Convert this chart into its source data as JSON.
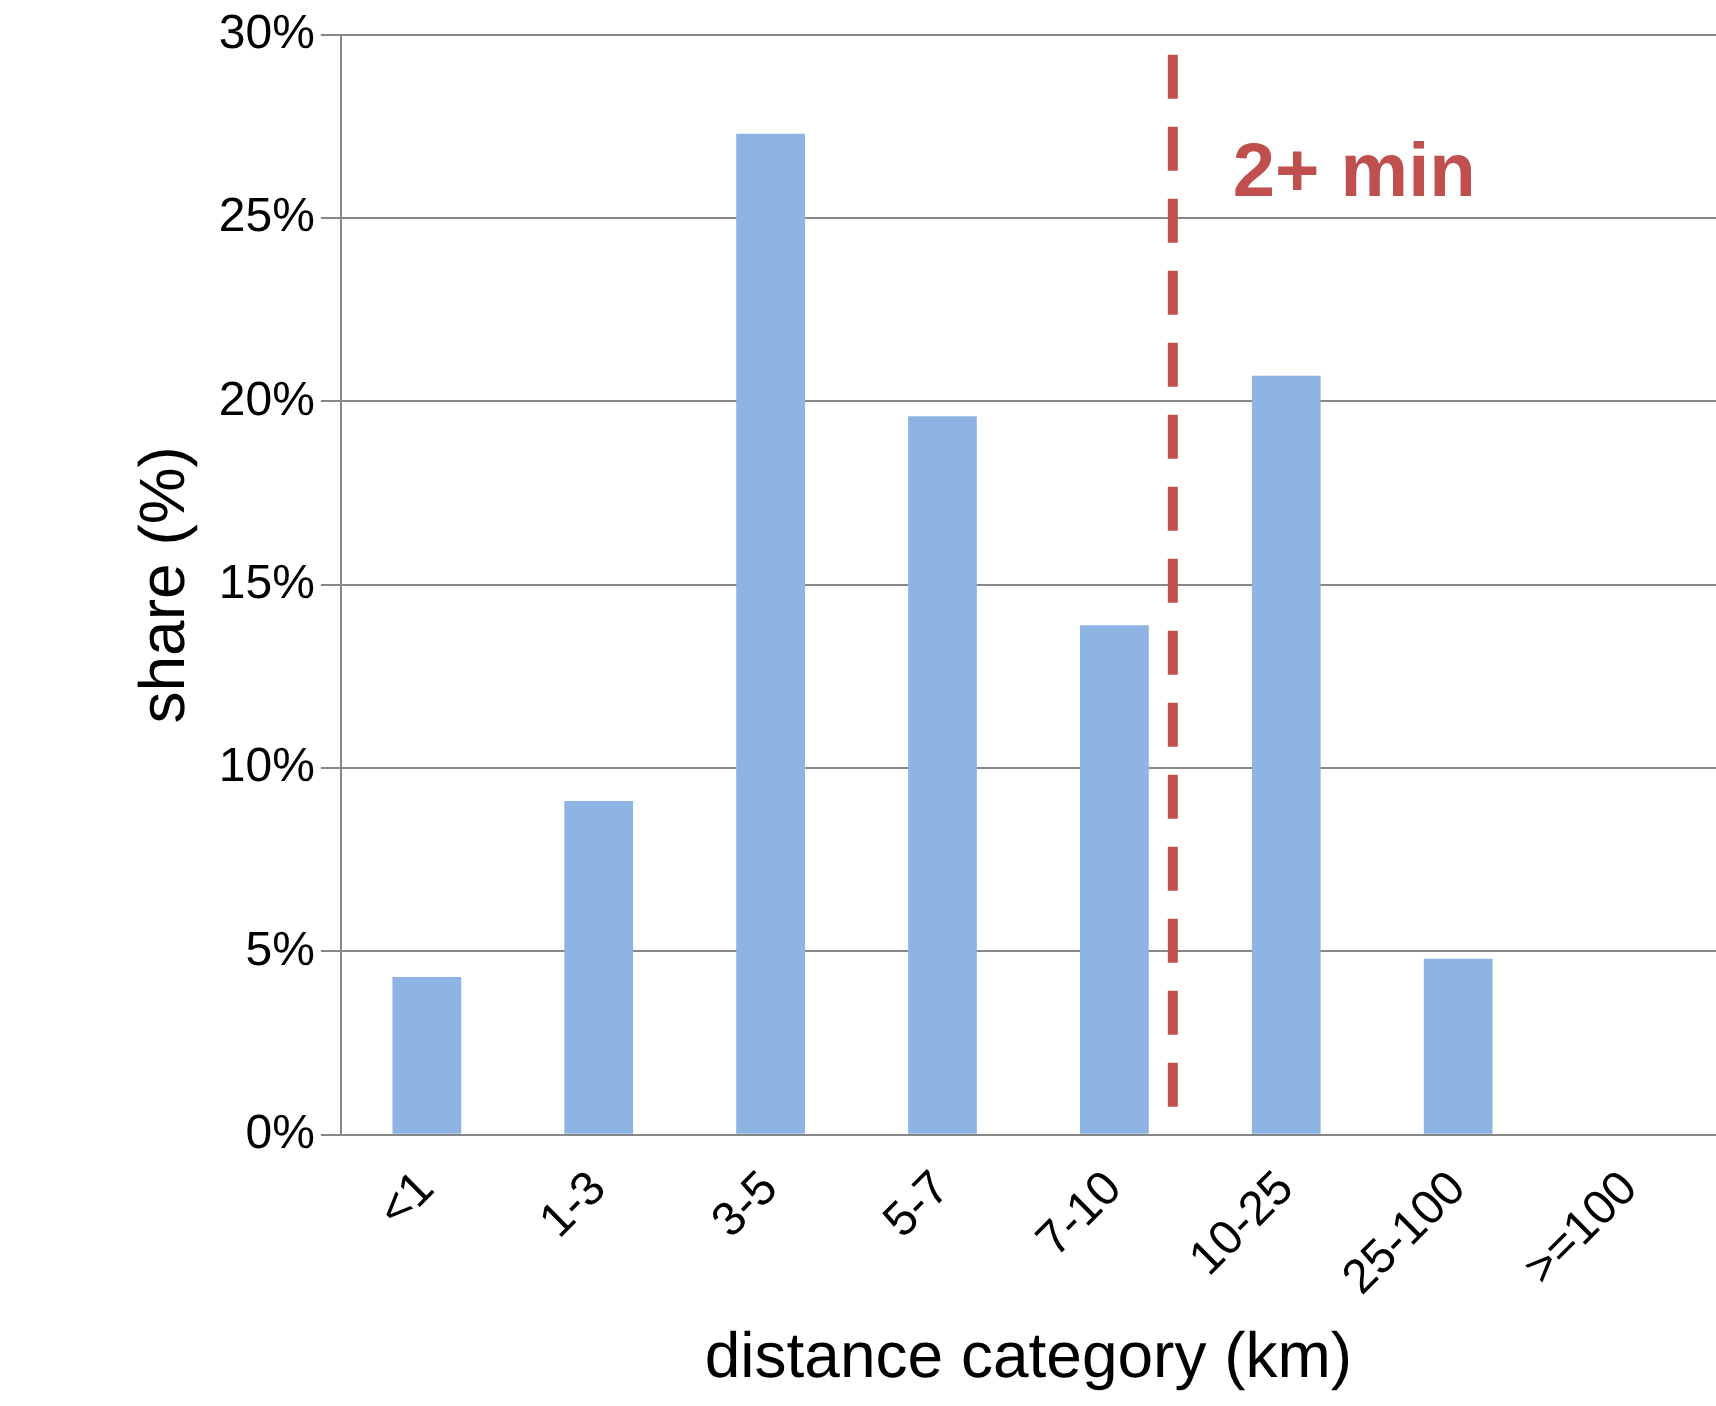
{
  "chart_data": {
    "type": "bar",
    "xlabel": "distance category (km)",
    "ylabel": "share (%)",
    "categories": [
      "<1",
      "1-3",
      "3-5",
      "5-7",
      "7-10",
      "10-25",
      "25-100",
      ">=100"
    ],
    "values": [
      4.3,
      9.1,
      27.3,
      19.6,
      13.9,
      20.7,
      4.8,
      0
    ],
    "color": "#8db4e2",
    "ylim": [
      0,
      30
    ],
    "yticks": [
      {
        "value": 0,
        "label": "0%"
      },
      {
        "value": 5,
        "label": "5%"
      },
      {
        "value": 10,
        "label": "10%"
      },
      {
        "value": 15,
        "label": "15%"
      },
      {
        "value": 20,
        "label": "20%"
      },
      {
        "value": 25,
        "label": "25%"
      },
      {
        "value": 30,
        "label": "30%"
      }
    ],
    "grid": "y",
    "legend": false,
    "ref_lines": [
      {
        "axis": "x",
        "value": "7-10",
        "label": "2+ min",
        "color": "#c0504d",
        "line_style": "dashed"
      }
    ]
  }
}
